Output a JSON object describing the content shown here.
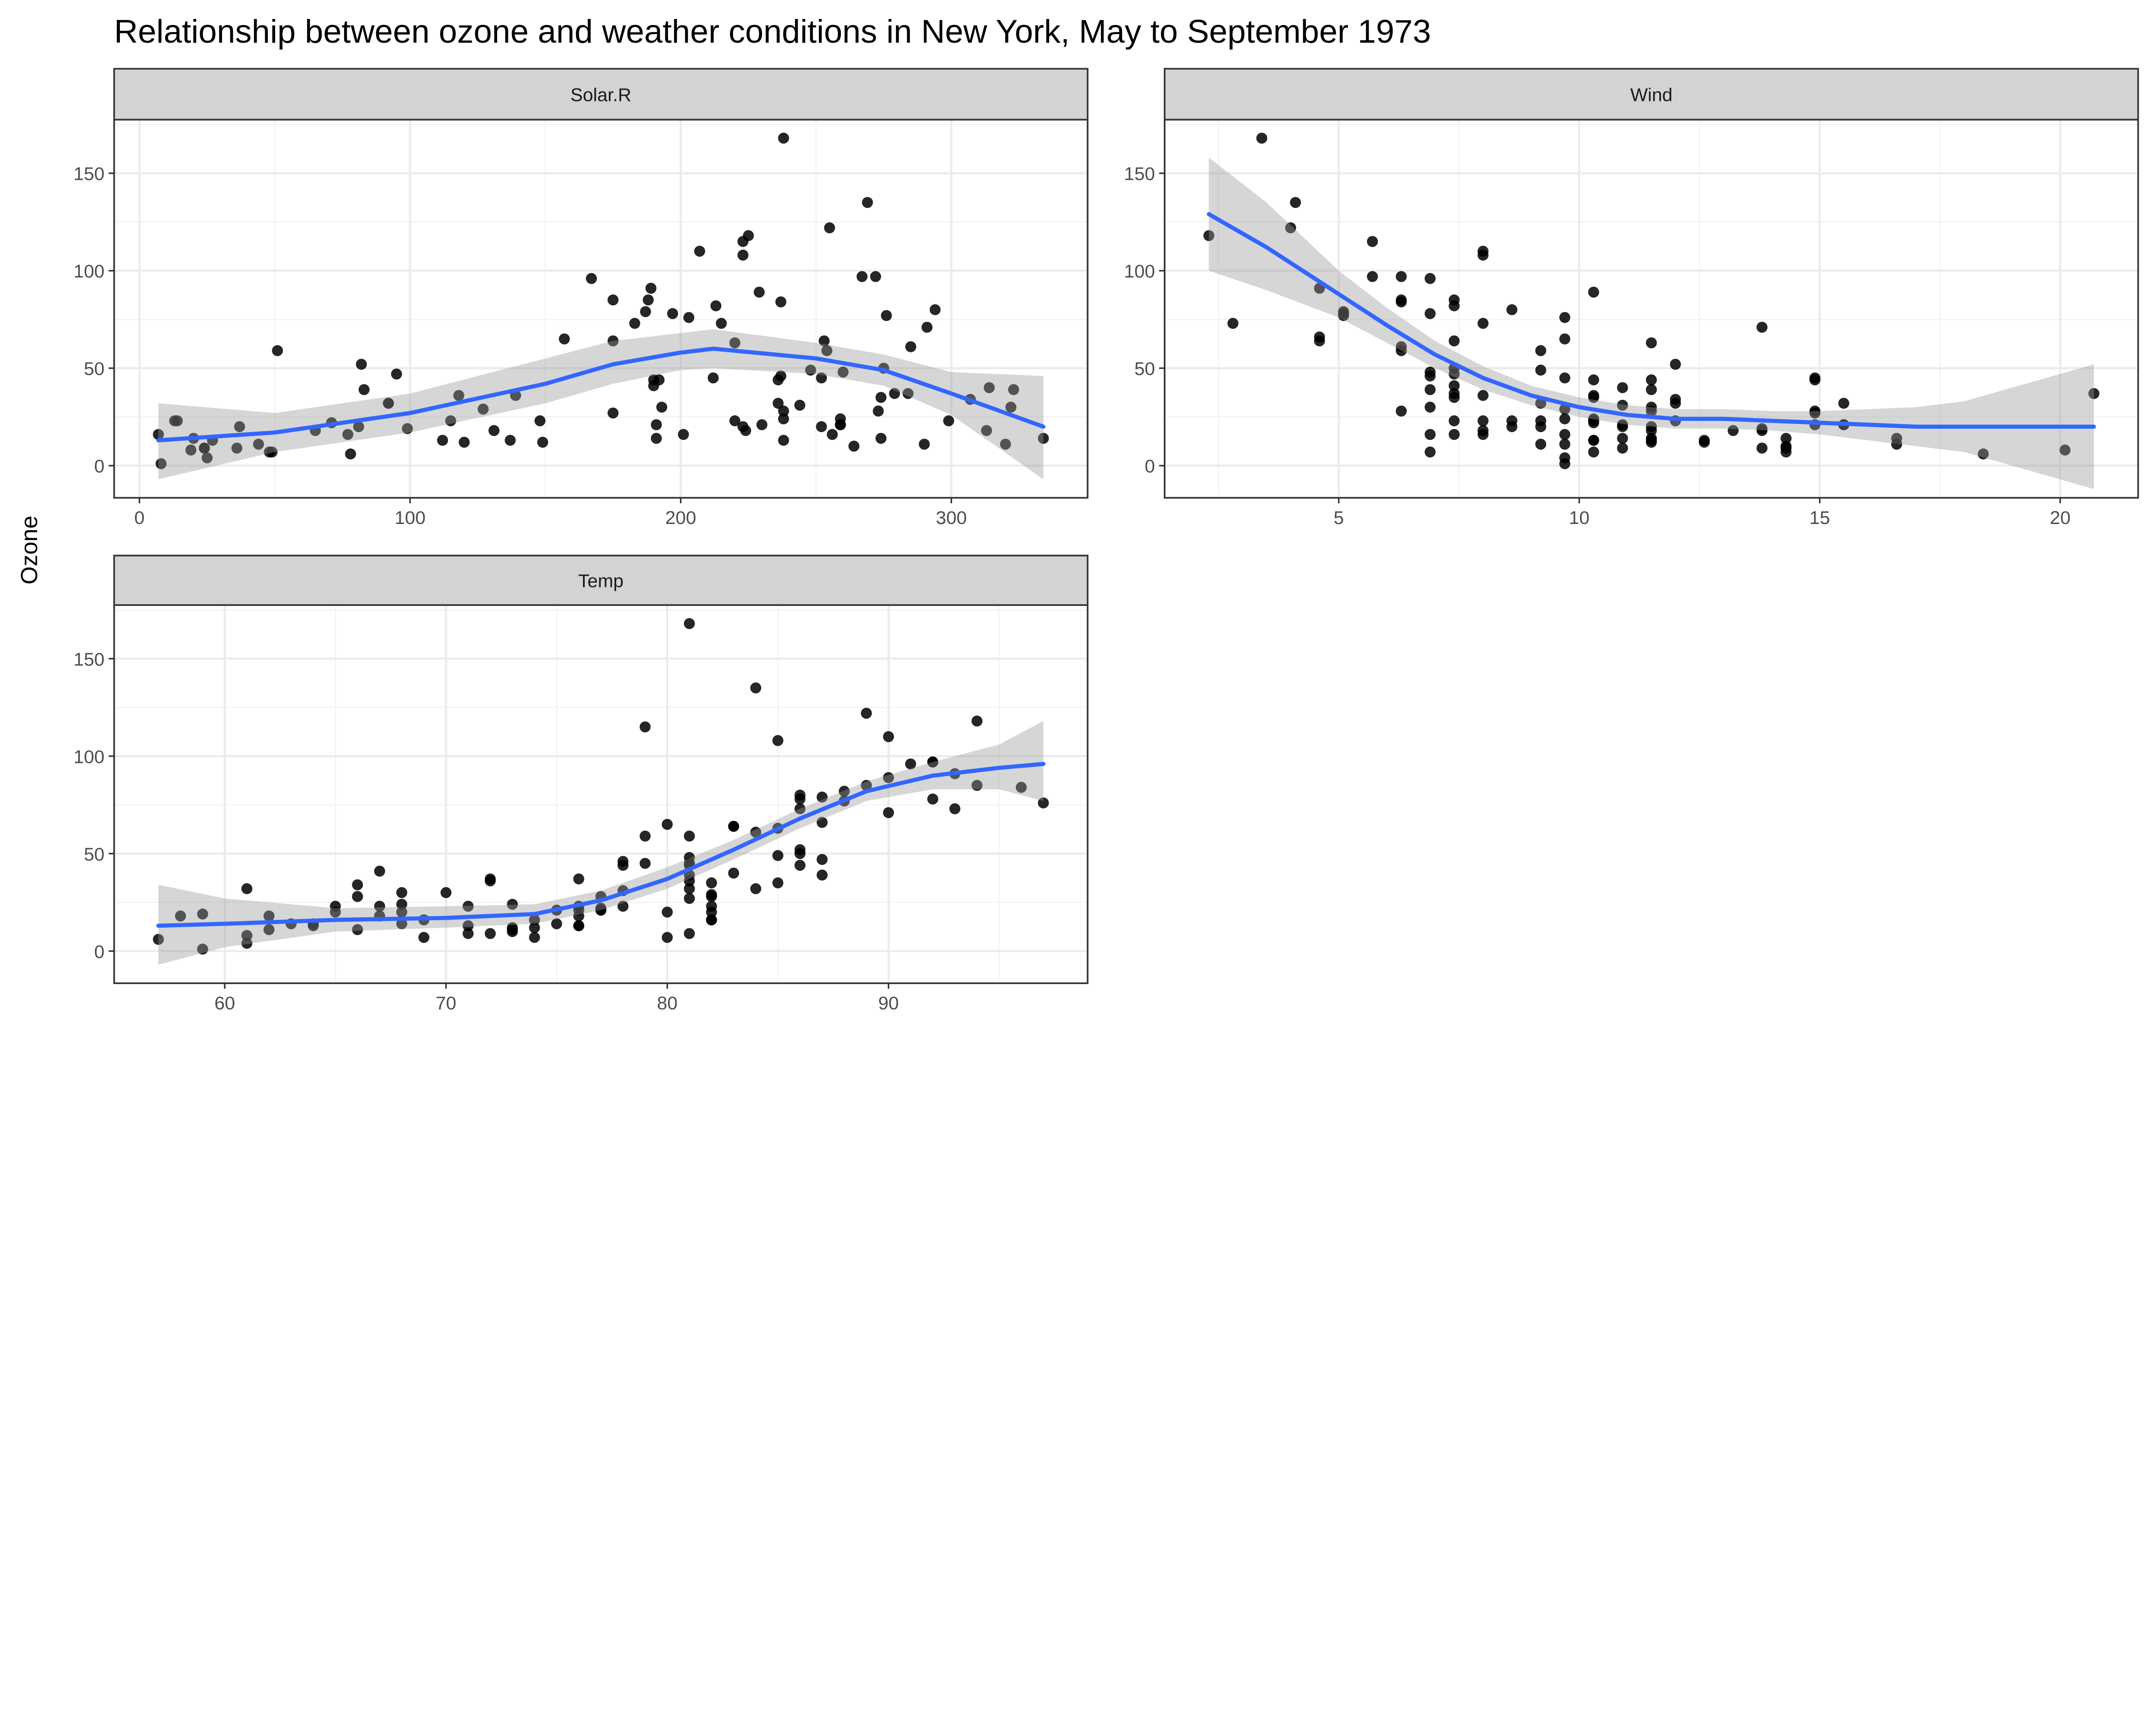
{
  "chart_data": {
    "type": "scatter",
    "title": "Relationship between ozone and weather conditions in New York, May to September 1973",
    "ylabel": "Ozone",
    "xlabel": "",
    "grid": true,
    "ylim": [
      -16.5,
      177.5
    ],
    "yticks": [
      0,
      50,
      100,
      150
    ],
    "point_color": "#000000",
    "smooth_color": "#3366FF",
    "ribbon_color": "#999999",
    "strip_fill": "#D3D3D3",
    "columns": [
      "Ozone",
      "Solar.R",
      "Wind",
      "Temp"
    ],
    "rows": [
      [
        41,
        190,
        7.4,
        67
      ],
      [
        36,
        118,
        8.0,
        72
      ],
      [
        12,
        149,
        12.6,
        74
      ],
      [
        18,
        313,
        11.5,
        62
      ],
      [
        28,
        null,
        14.9,
        66
      ],
      [
        23,
        299,
        8.6,
        65
      ],
      [
        19,
        99,
        13.8,
        59
      ],
      [
        8,
        19,
        20.1,
        61
      ],
      [
        7,
        null,
        6.9,
        74
      ],
      [
        16,
        256,
        9.7,
        69
      ],
      [
        11,
        290,
        9.2,
        66
      ],
      [
        14,
        274,
        10.9,
        68
      ],
      [
        18,
        65,
        13.2,
        58
      ],
      [
        14,
        334,
        11.5,
        64
      ],
      [
        34,
        307,
        12.0,
        66
      ],
      [
        6,
        78,
        18.4,
        57
      ],
      [
        30,
        322,
        11.5,
        68
      ],
      [
        11,
        44,
        9.7,
        62
      ],
      [
        1,
        8,
        9.7,
        59
      ],
      [
        11,
        320,
        16.6,
        73
      ],
      [
        4,
        25,
        9.7,
        61
      ],
      [
        32,
        92,
        12.0,
        61
      ],
      [
        23,
        13,
        12.0,
        67
      ],
      [
        45,
        252,
        14.9,
        81
      ],
      [
        115,
        223,
        5.7,
        79
      ],
      [
        37,
        279,
        7.4,
        76
      ],
      [
        29,
        127,
        9.7,
        82
      ],
      [
        71,
        291,
        13.8,
        90
      ],
      [
        39,
        323,
        11.5,
        87
      ],
      [
        23,
        148,
        8.0,
        82
      ],
      [
        21,
        191,
        14.9,
        77
      ],
      [
        37,
        284,
        20.7,
        72
      ],
      [
        20,
        37,
        9.2,
        65
      ],
      [
        12,
        120,
        11.5,
        73
      ],
      [
        13,
        137,
        10.3,
        76
      ],
      [
        135,
        269,
        4.1,
        84
      ],
      [
        49,
        248,
        9.2,
        85
      ],
      [
        32,
        236,
        9.2,
        81
      ],
      [
        64,
        175,
        4.6,
        83
      ],
      [
        40,
        314,
        10.9,
        83
      ],
      [
        77,
        276,
        5.1,
        88
      ],
      [
        97,
        267,
        6.3,
        92
      ],
      [
        97,
        272,
        5.7,
        92
      ],
      [
        85,
        175,
        7.4,
        89
      ],
      [
        10,
        264,
        14.3,
        73
      ],
      [
        27,
        175,
        14.9,
        81
      ],
      [
        7,
        48,
        14.3,
        80
      ],
      [
        48,
        260,
        6.9,
        81
      ],
      [
        35,
        274,
        10.3,
        82
      ],
      [
        61,
        285,
        6.3,
        84
      ],
      [
        79,
        187,
        5.1,
        87
      ],
      [
        63,
        220,
        11.5,
        85
      ],
      [
        16,
        7,
        6.9,
        74
      ],
      [
        80,
        294,
        8.6,
        86
      ],
      [
        108,
        223,
        8.0,
        85
      ],
      [
        20,
        81,
        8.6,
        82
      ],
      [
        52,
        82,
        12.0,
        86
      ],
      [
        82,
        213,
        7.4,
        88
      ],
      [
        50,
        275,
        7.4,
        86
      ],
      [
        64,
        253,
        7.4,
        83
      ],
      [
        59,
        254,
        9.2,
        81
      ],
      [
        39,
        83,
        6.9,
        81
      ],
      [
        9,
        24,
        13.8,
        81
      ],
      [
        16,
        77,
        7.4,
        82
      ],
      [
        78,
        null,
        6.9,
        86
      ],
      [
        35,
        null,
        7.4,
        85
      ],
      [
        66,
        null,
        4.6,
        87
      ],
      [
        122,
        255,
        4.0,
        89
      ],
      [
        89,
        229,
        10.3,
        90
      ],
      [
        110,
        207,
        8.0,
        90
      ],
      [
        44,
        192,
        11.5,
        86
      ],
      [
        28,
        273,
        11.5,
        82
      ],
      [
        65,
        157,
        9.7,
        80
      ],
      [
        22,
        71,
        10.3,
        77
      ],
      [
        59,
        51,
        6.3,
        79
      ],
      [
        23,
        115,
        7.4,
        76
      ],
      [
        31,
        244,
        10.9,
        78
      ],
      [
        44,
        190,
        10.3,
        78
      ],
      [
        21,
        259,
        15.5,
        77
      ],
      [
        9,
        36,
        14.3,
        72
      ],
      [
        45,
        212,
        9.7,
        79
      ],
      [
        168,
        238,
        3.4,
        81
      ],
      [
        73,
        215,
        8.0,
        86
      ],
      [
        76,
        203,
        9.7,
        97
      ],
      [
        118,
        225,
        2.3,
        94
      ],
      [
        84,
        237,
        6.3,
        96
      ],
      [
        85,
        188,
        6.3,
        94
      ],
      [
        96,
        167,
        6.9,
        91
      ],
      [
        78,
        197,
        5.1,
        92
      ],
      [
        73,
        183,
        2.8,
        93
      ],
      [
        91,
        189,
        4.6,
        93
      ],
      [
        47,
        95,
        7.4,
        87
      ],
      [
        32,
        92,
        15.5,
        84
      ],
      [
        20,
        252,
        10.9,
        80
      ],
      [
        23,
        220,
        10.3,
        78
      ],
      [
        21,
        230,
        10.9,
        75
      ],
      [
        24,
        259,
        9.7,
        73
      ],
      [
        44,
        236,
        14.9,
        81
      ],
      [
        21,
        259,
        15.5,
        76
      ],
      [
        28,
        238,
        6.3,
        77
      ],
      [
        9,
        24,
        10.9,
        71
      ],
      [
        13,
        112,
        11.5,
        71
      ],
      [
        46,
        237,
        6.9,
        78
      ],
      [
        18,
        224,
        13.8,
        67
      ],
      [
        13,
        27,
        10.3,
        76
      ],
      [
        24,
        238,
        10.3,
        68
      ],
      [
        16,
        201,
        8.0,
        82
      ],
      [
        13,
        238,
        12.6,
        64
      ],
      [
        23,
        14,
        9.2,
        71
      ],
      [
        36,
        139,
        10.3,
        81
      ],
      [
        7,
        49,
        10.3,
        69
      ],
      [
        14,
        20,
        16.6,
        63
      ],
      [
        30,
        193,
        6.9,
        70
      ],
      [
        14,
        191,
        14.3,
        75
      ],
      [
        18,
        131,
        8.0,
        76
      ],
      [
        20,
        223,
        11.5,
        68
      ]
    ],
    "panels": [
      {
        "strip": "Solar.R",
        "column": 1,
        "xlim": [
          -9.35,
          350.35
        ],
        "xticks": [
          0,
          100,
          200,
          300
        ],
        "smooth": {
          "x": [
            7,
            50,
            100,
            150,
            175,
            200,
            212,
            250,
            275,
            300,
            334
          ],
          "fit": [
            13,
            17,
            27,
            42,
            52,
            58,
            60,
            55,
            49,
            37,
            20
          ],
          "upper": [
            32,
            27,
            37,
            55,
            64,
            68,
            70,
            63,
            57,
            48,
            46
          ],
          "lower": [
            -7,
            7,
            17,
            32,
            42,
            49,
            50,
            47,
            41,
            26,
            -7
          ]
        }
      },
      {
        "strip": "Wind",
        "column": 2,
        "xlim": [
          1.38,
          21.62
        ],
        "xticks": [
          5,
          10,
          15,
          20
        ],
        "smooth": {
          "x": [
            2.3,
            3.5,
            5,
            6,
            7,
            8,
            9,
            10,
            11,
            12,
            13,
            14,
            15,
            16,
            17,
            18,
            20.7
          ],
          "fit": [
            129,
            112,
            88,
            72,
            57,
            45,
            36,
            30,
            26,
            24,
            24,
            23,
            22,
            21,
            20,
            20,
            20
          ],
          "upper": [
            158,
            135,
            100,
            81,
            64,
            51,
            41,
            35,
            31,
            29,
            29,
            28,
            28,
            29,
            30,
            33,
            52
          ],
          "lower": [
            100,
            90,
            76,
            63,
            50,
            39,
            31,
            25,
            21,
            19,
            19,
            18,
            16,
            13,
            10,
            7,
            -12
          ]
        }
      },
      {
        "strip": "Temp",
        "column": 3,
        "xlim": [
          55,
          99
        ],
        "xticks": [
          60,
          70,
          80,
          90
        ],
        "smooth": {
          "x": [
            57,
            60,
            65,
            70,
            74,
            77,
            80,
            83,
            86,
            89,
            92,
            95,
            97
          ],
          "fit": [
            13,
            14,
            16,
            17,
            19,
            26,
            37,
            52,
            68,
            82,
            90,
            94,
            96
          ],
          "upper": [
            34,
            27,
            22,
            23,
            24,
            31,
            43,
            57,
            73,
            87,
            97,
            106,
            118
          ],
          "lower": [
            -7,
            2,
            10,
            12,
            14,
            21,
            32,
            47,
            63,
            77,
            83,
            83,
            77
          ]
        }
      }
    ]
  }
}
